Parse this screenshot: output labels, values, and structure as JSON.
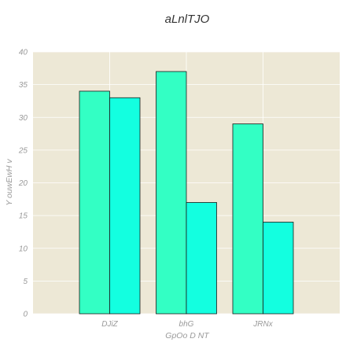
{
  "chart_data": {
    "type": "bar",
    "title": "aLnlTJO",
    "xlabel": "GpOo D NT",
    "ylabel": "Y  ouwEwH v",
    "categories": [
      "DJiZ",
      "bhG",
      "JRNx"
    ],
    "series": [
      {
        "values": [
          34,
          37,
          29
        ],
        "color": "#33ffc4"
      },
      {
        "values": [
          33,
          17,
          14
        ],
        "color": "#13ffe0"
      }
    ],
    "ylim": [
      0,
      40
    ],
    "yticks": [
      0,
      5,
      10,
      15,
      20,
      25,
      30,
      35,
      40
    ],
    "grid": true,
    "background": "#ede8d6"
  }
}
